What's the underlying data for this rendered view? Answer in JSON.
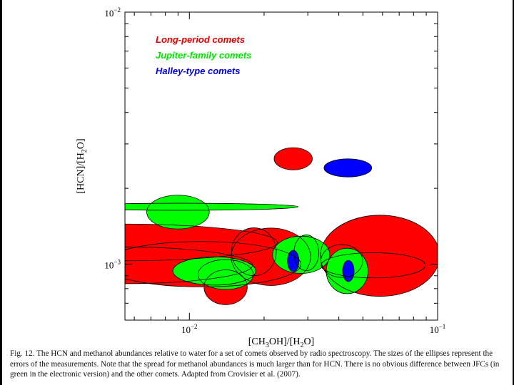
{
  "chart_data": {
    "type": "scatter",
    "style": "error-ellipses",
    "x_scale": "log",
    "y_scale": "log",
    "xlim": [
      0.0055,
      0.1
    ],
    "ylim": [
      0.0006,
      0.01
    ],
    "xlabel": "[CH3OH]/[H2O]",
    "ylabel": "[HCN]/[H2O]",
    "x_ticks": [
      {
        "value": 0.01,
        "base": "10",
        "exp": "−2"
      },
      {
        "value": 0.1,
        "base": "10",
        "exp": "−1"
      }
    ],
    "y_ticks": [
      {
        "value": 0.001,
        "base": "10",
        "exp": "−3"
      },
      {
        "value": 0.01,
        "base": "10",
        "exp": "−2"
      }
    ],
    "legend": [
      {
        "label": "Long-period comets",
        "color": "#e60000"
      },
      {
        "label": "Jupiter-family comets",
        "color": "#00e600"
      },
      {
        "label": "Halley-type comets",
        "color": "#0000e6"
      }
    ],
    "series": [
      {
        "name": "Long-period comets",
        "color": "#ff0000",
        "points": [
          {
            "x": 0.0262,
            "y": 0.00262,
            "rx": 0.077,
            "ry": 0.044
          },
          {
            "x": 0.0053,
            "y": 0.00122,
            "rx": 0.63,
            "ry": 0.073
          },
          {
            "x": 0.0053,
            "y": 0.00099,
            "rx": 0.53,
            "ry": 0.073
          },
          {
            "x": 0.0112,
            "y": 0.001,
            "rx": 0.4,
            "ry": 0.09
          },
          {
            "x": 0.0182,
            "y": 0.00112,
            "rx": 0.09,
            "ry": 0.095
          },
          {
            "x": 0.0213,
            "y": 0.00107,
            "rx": 0.16,
            "ry": 0.114
          },
          {
            "x": 0.014,
            "y": 0.00081,
            "rx": 0.087,
            "ry": 0.069
          },
          {
            "x": 0.0586,
            "y": 0.00108,
            "rx": 0.24,
            "ry": 0.161
          },
          {
            "x": 0.055,
            "y": 0.00099,
            "rx": 0.21,
            "ry": 0.05
          },
          {
            "x": 0.0411,
            "y": 0.00103,
            "rx": 0.084,
            "ry": 0.065
          }
        ]
      },
      {
        "name": "Jupiter-family comets",
        "color": "#00ff00",
        "points": [
          {
            "x": 0.009,
            "y": 0.00161,
            "rx": 0.126,
            "ry": 0.067
          },
          {
            "x": 0.0093,
            "y": 0.00169,
            "rx": 0.47,
            "ry": 0.014
          },
          {
            "x": 0.0126,
            "y": 0.00094,
            "rx": 0.167,
            "ry": 0.056
          },
          {
            "x": 0.014,
            "y": 0.00091,
            "rx": 0.111,
            "ry": 0.059
          },
          {
            "x": 0.0282,
            "y": 0.00109,
            "rx": 0.115,
            "ry": 0.074
          },
          {
            "x": 0.0296,
            "y": 0.00111,
            "rx": 0.05,
            "ry": 0.071
          },
          {
            "x": 0.0432,
            "y": 0.00094,
            "rx": 0.084,
            "ry": 0.09
          }
        ]
      },
      {
        "name": "Halley-type comets",
        "color": "#0000ff",
        "points": [
          {
            "x": 0.0435,
            "y": 0.00241,
            "rx": 0.096,
            "ry": 0.036
          },
          {
            "x": 0.0262,
            "y": 0.00103,
            "rx": 0.023,
            "ry": 0.042
          },
          {
            "x": 0.0437,
            "y": 0.00094,
            "rx": 0.023,
            "ry": 0.042
          }
        ]
      }
    ]
  },
  "caption": {
    "text": "Fig. 12. The HCN and methanol abundances relative to water for a set of comets observed by radio spectroscopy. The sizes of the ellipses represent the errors of the measurements. Note that the spread for methanol abundances is much larger than for HCN. There is no obvious difference between JFCs (in green in the electronic version) and the other comets. Adapted from Crovisier et al. (2007)."
  }
}
